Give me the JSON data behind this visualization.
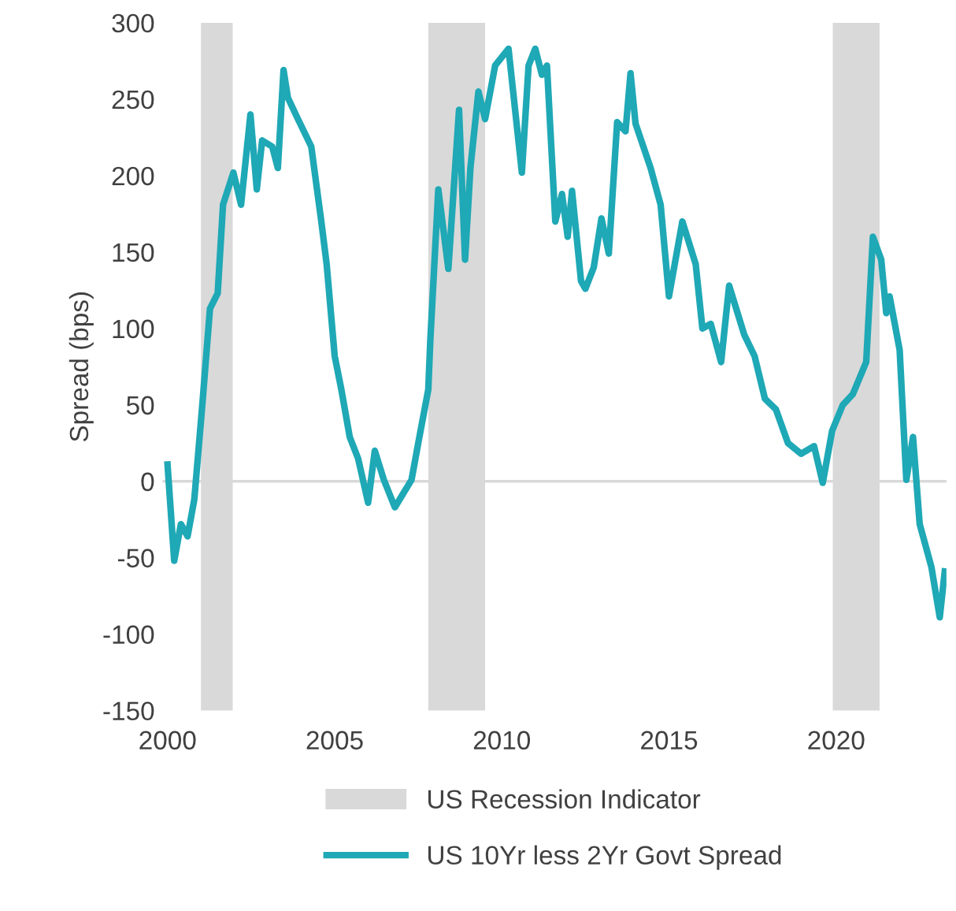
{
  "chart_data": {
    "type": "line",
    "ylabel": "Spread (bps)",
    "xlim": [
      1999.85,
      2023.3
    ],
    "xticks": [
      2000,
      2005,
      2010,
      2015,
      2020
    ],
    "ylim": [
      -150,
      300
    ],
    "yticks": [
      -150,
      -100,
      -50,
      0,
      50,
      100,
      150,
      200,
      250,
      300
    ],
    "legend": "bottom",
    "grid": false,
    "series": [
      {
        "name": "US 10Yr less 2Yr Govt Spread",
        "color": "#1fa8b5",
        "x": [
          2000.0,
          2000.2,
          2000.4,
          2000.6,
          2000.8,
          2001.04,
          2001.27,
          2001.5,
          2001.66,
          2001.97,
          2002.2,
          2002.48,
          2002.67,
          2002.83,
          2003.13,
          2003.3,
          2003.47,
          2003.6,
          2003.9,
          2004.3,
          2004.6,
          2004.76,
          2005.0,
          2005.2,
          2005.45,
          2005.7,
          2006.0,
          2006.2,
          2006.47,
          2006.8,
          2007.3,
          2007.5,
          2007.8,
          2007.86,
          2008.1,
          2008.4,
          2008.72,
          2008.9,
          2009.06,
          2009.3,
          2009.5,
          2009.8,
          2010.2,
          2010.6,
          2010.8,
          2011.0,
          2011.2,
          2011.35,
          2011.6,
          2011.8,
          2011.97,
          2012.1,
          2012.37,
          2012.5,
          2012.75,
          2012.98,
          2013.2,
          2013.45,
          2013.7,
          2013.85,
          2014.0,
          2014.45,
          2014.75,
          2015.0,
          2015.4,
          2015.8,
          2016.0,
          2016.25,
          2016.56,
          2016.8,
          2017.25,
          2017.56,
          2017.87,
          2018.2,
          2018.56,
          2018.95,
          2019.34,
          2019.6,
          2019.88,
          2020.2,
          2020.5,
          2020.9,
          2021.1,
          2021.35,
          2021.5,
          2021.6,
          2021.9,
          2022.1,
          2022.3,
          2022.5,
          2022.85,
          2023.1,
          2023.25
        ],
        "values": [
          11,
          -52,
          -28,
          -36,
          -12,
          50,
          113,
          123,
          181,
          202,
          181,
          240,
          191,
          223,
          219,
          205,
          269,
          251,
          237,
          219,
          170,
          142,
          82,
          60,
          29,
          15,
          -14,
          20,
          1,
          -17,
          1,
          25,
          60,
          92,
          191,
          139,
          243,
          145,
          205,
          255,
          237,
          272,
          283,
          202,
          272,
          283,
          266,
          272,
          170,
          188,
          160,
          190,
          131,
          126,
          140,
          172,
          149,
          235,
          229,
          267,
          234,
          205,
          181,
          121,
          170,
          142,
          100,
          103,
          78,
          128,
          96,
          82,
          54,
          47,
          25,
          18,
          23,
          -1,
          33,
          50,
          57,
          78,
          160,
          145,
          110,
          121,
          86,
          1,
          29,
          -28,
          -56,
          -89,
          -59
        ]
      }
    ],
    "bands": [
      {
        "axis": "x",
        "from": 2001.0,
        "to": 2001.95,
        "label": "US Recession Indicator",
        "color": "#d9d9d9"
      },
      {
        "axis": "x",
        "from": 2007.8,
        "to": 2009.5,
        "color": "#d9d9d9"
      },
      {
        "axis": "x",
        "from": 2019.9,
        "to": 2021.3,
        "color": "#d9d9d9"
      }
    ],
    "ref_lines": [
      {
        "axis": "y",
        "value": 0,
        "color": "#d9d9d9"
      }
    ]
  }
}
